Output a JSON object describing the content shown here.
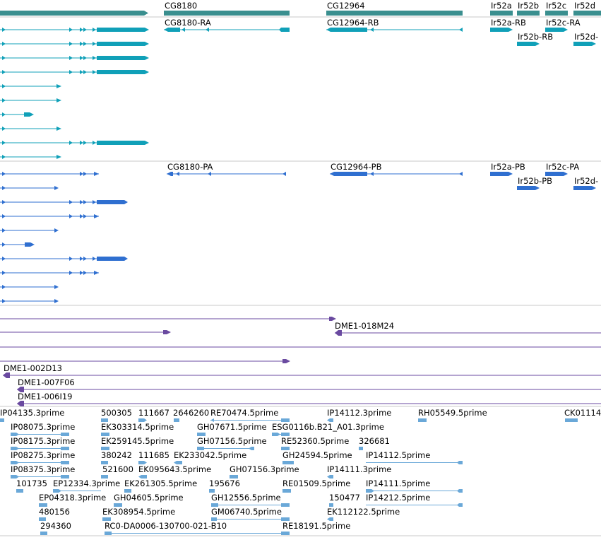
{
  "colors": {
    "gene": "#3a8f8f",
    "transcript_rna": "#10a0b8",
    "transcript_protein": "#2f6fd0",
    "clone": "#6a4aa0",
    "est": "#6aa8d8",
    "divider": "#c8c8c8"
  },
  "genes": [
    {
      "label": "CG8180"
    },
    {
      "label": "CG12964"
    },
    {
      "label": "Ir52a"
    },
    {
      "label": "Ir52b"
    },
    {
      "label": "Ir52c"
    },
    {
      "label": "Ir52d"
    }
  ],
  "transcripts": [
    {
      "label": "CG8180-RA"
    },
    {
      "label": "CG12964-RB"
    },
    {
      "label": "Ir52a-RB"
    },
    {
      "label": "Ir52c-RA"
    },
    {
      "label": "Ir52b-RB"
    },
    {
      "label": "Ir52d-"
    }
  ],
  "proteins": [
    {
      "label": "CG8180-PA"
    },
    {
      "label": "CG12964-PB"
    },
    {
      "label": "Ir52a-PB"
    },
    {
      "label": "Ir52c-PA"
    },
    {
      "label": "Ir52b-PB"
    },
    {
      "label": "Ir52d-"
    }
  ],
  "clones": [
    {
      "label": "DME1-018M24"
    },
    {
      "label": "DME1-002D13"
    },
    {
      "label": "DME1-007F06"
    },
    {
      "label": "DME1-006I19"
    }
  ],
  "ests": [
    {
      "label": "IP04135.3prime"
    },
    {
      "label": "500305"
    },
    {
      "label": "111667"
    },
    {
      "label": "2646260"
    },
    {
      "label": "RE70474.5prime"
    },
    {
      "label": "IP14112.3prime"
    },
    {
      "label": "RH05549.5prime"
    },
    {
      "label": "CK01114"
    },
    {
      "label": "IP08075.3prime"
    },
    {
      "label": "EK303314.5prime"
    },
    {
      "label": "GH07671.5prime"
    },
    {
      "label": "ESG0116b.B21_A01.3prime"
    },
    {
      "label": "IP08175.3prime"
    },
    {
      "label": "EK259145.5prime"
    },
    {
      "label": "GH07156.5prime"
    },
    {
      "label": "RE52360.5prime"
    },
    {
      "label": "326681"
    },
    {
      "label": "IP08275.3prime"
    },
    {
      "label": "380242"
    },
    {
      "label": "111685"
    },
    {
      "label": "EK233042.5prime"
    },
    {
      "label": "GH24594.5prime"
    },
    {
      "label": "IP14112.5prime"
    },
    {
      "label": "IP08375.3prime"
    },
    {
      "label": "521600"
    },
    {
      "label": "EK095643.5prime"
    },
    {
      "label": "GH07156.3prime"
    },
    {
      "label": "IP14111.3prime"
    },
    {
      "label": "101735"
    },
    {
      "label": "EP12334.3prime"
    },
    {
      "label": "EK261305.5prime"
    },
    {
      "label": "195676"
    },
    {
      "label": "RE01509.5prime"
    },
    {
      "label": "IP14111.5prime"
    },
    {
      "label": "EP04318.3prime"
    },
    {
      "label": "GH04605.5prime"
    },
    {
      "label": "GH12556.5prime"
    },
    {
      "label": "150477"
    },
    {
      "label": "IP14212.5prime"
    },
    {
      "label": "480156"
    },
    {
      "label": "EK308954.5prime"
    },
    {
      "label": "GM06740.5prime"
    },
    {
      "label": "EK112122.5prime"
    },
    {
      "label": "294360"
    },
    {
      "label": "RC0-DA0006-130700-021-B10"
    },
    {
      "label": "RE18191.5prime"
    }
  ]
}
